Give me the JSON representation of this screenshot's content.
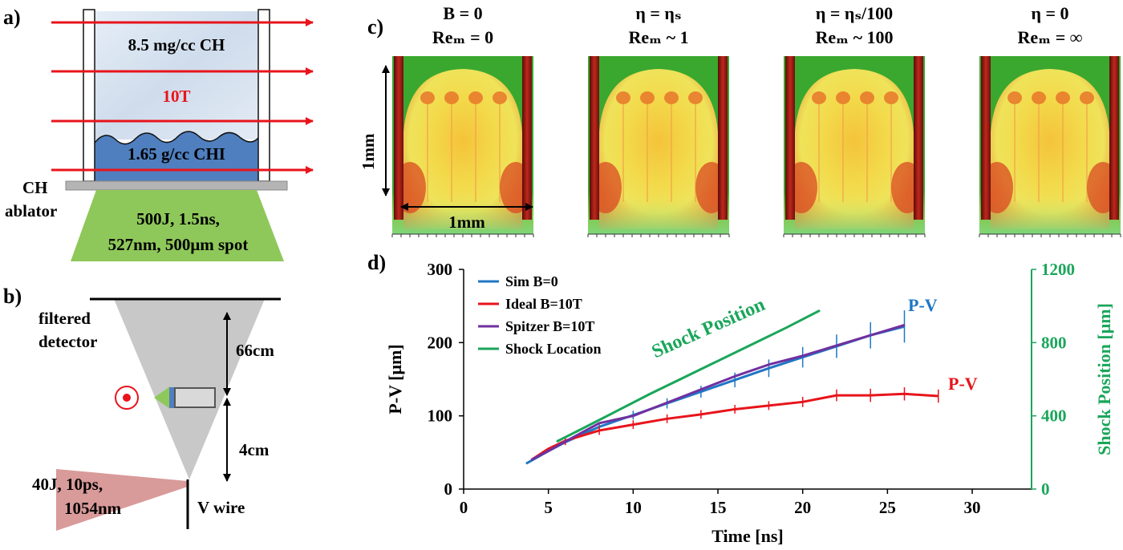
{
  "panel_a": {
    "label": "a)",
    "foam_label": "8.5 mg/cc CH",
    "field_label": "10T",
    "chi_label": "1.65 g/cc CHI",
    "ablator_label_1": "CH",
    "ablator_label_2": "ablator",
    "laser_line_1": "500J, 1.5ns,",
    "laser_line_2": "527nm, 500μm spot",
    "colors": {
      "arrow": "#e8141b",
      "foam": "#dbe6f2",
      "chi": "#4f7fbf",
      "ablator": "#b4b4b4",
      "laser": "#8fc85a",
      "field_text": "#e8141b"
    }
  },
  "panel_b": {
    "label": "b)",
    "detector_1": "filtered",
    "detector_2": "detector",
    "dist_top": "66cm",
    "dist_bottom": "4cm",
    "beam_1": "40J, 10ps,",
    "beam_2": "1054nm",
    "wire": "V wire",
    "colors": {
      "cone": "#c8c8c8",
      "beam": "#d99a9a",
      "marker": "#e8141b"
    }
  },
  "panel_c": {
    "label": "c)",
    "panels": [
      {
        "t1": "B = 0",
        "t2": "Reₘ = 0"
      },
      {
        "t1": "η = ηₛ",
        "t2": "Reₘ ~ 1"
      },
      {
        "t1": "η = ηₛ/100",
        "t2": "Reₘ ~ 100"
      },
      {
        "t1": "η = 0",
        "t2": "Reₘ = ∞"
      }
    ],
    "scale_v": "1mm",
    "scale_h": "1mm"
  },
  "chart_data": {
    "type": "line",
    "panel_label": "d)",
    "xlabel": "Time [ns]",
    "ylabel": "P-V [μm]",
    "y2label": "Shock Position [μm]",
    "xlim": [
      0,
      33.5
    ],
    "ylim": [
      0,
      300
    ],
    "y2lim": [
      0,
      1200
    ],
    "xticks": [
      "0",
      "5",
      "10",
      "15",
      "20",
      "25",
      "30"
    ],
    "yticks": [
      "0",
      "100",
      "200",
      "300"
    ],
    "y2ticks": [
      "0",
      "400",
      "800",
      "1200"
    ],
    "legend_position": "top-left",
    "series": [
      {
        "name": "Sim B=0",
        "color": "#1f77c4",
        "axis": "left",
        "x": [
          3.7,
          5,
          6,
          8,
          10,
          12,
          14,
          16,
          18,
          20,
          22,
          24,
          26
        ],
        "y": [
          35,
          52,
          64,
          85,
          101,
          117,
          133,
          149,
          165,
          180,
          195,
          210,
          222
        ],
        "error_x": [
          8,
          10,
          12,
          14,
          16,
          18,
          20,
          22,
          24,
          26
        ],
        "error_half": [
          5,
          6,
          7,
          8,
          10,
          12,
          14,
          16,
          18,
          22
        ]
      },
      {
        "name": "Ideal B=10T",
        "color": "#e8141b",
        "axis": "left",
        "x": [
          4,
          5,
          6,
          8,
          10,
          12,
          14,
          16,
          18,
          20,
          22,
          24,
          26,
          28
        ],
        "y": [
          40,
          55,
          66,
          80,
          88,
          96,
          102,
          109,
          114,
          119,
          128,
          128,
          130,
          127
        ],
        "error_x": [
          6,
          8,
          10,
          12,
          14,
          16,
          18,
          20,
          22,
          24,
          26,
          28
        ],
        "error_half": [
          6,
          6,
          6,
          6,
          6,
          6,
          6,
          7,
          8,
          9,
          9,
          9
        ]
      },
      {
        "name": "Spitzer B=10T",
        "color": "#7030a0",
        "axis": "left",
        "x": [
          4,
          5,
          6,
          8,
          10,
          12,
          14,
          16,
          18,
          20,
          22,
          24,
          26
        ],
        "y": [
          40,
          52,
          65,
          90,
          100,
          118,
          136,
          154,
          170,
          182,
          196,
          210,
          224
        ]
      },
      {
        "name": "Shock Location",
        "color": "#1aa65a",
        "axis": "right",
        "x": [
          5.5,
          7,
          9,
          11,
          13,
          15,
          17,
          19,
          21
        ],
        "y": [
          260,
          330,
          425,
          520,
          610,
          700,
          790,
          880,
          975
        ]
      }
    ],
    "annotations": [
      {
        "text": "Shock Position",
        "color": "#1aa65a"
      },
      {
        "text": "P-V",
        "color": "#1f77c4"
      },
      {
        "text": "P-V",
        "color": "#e8141b"
      }
    ]
  }
}
